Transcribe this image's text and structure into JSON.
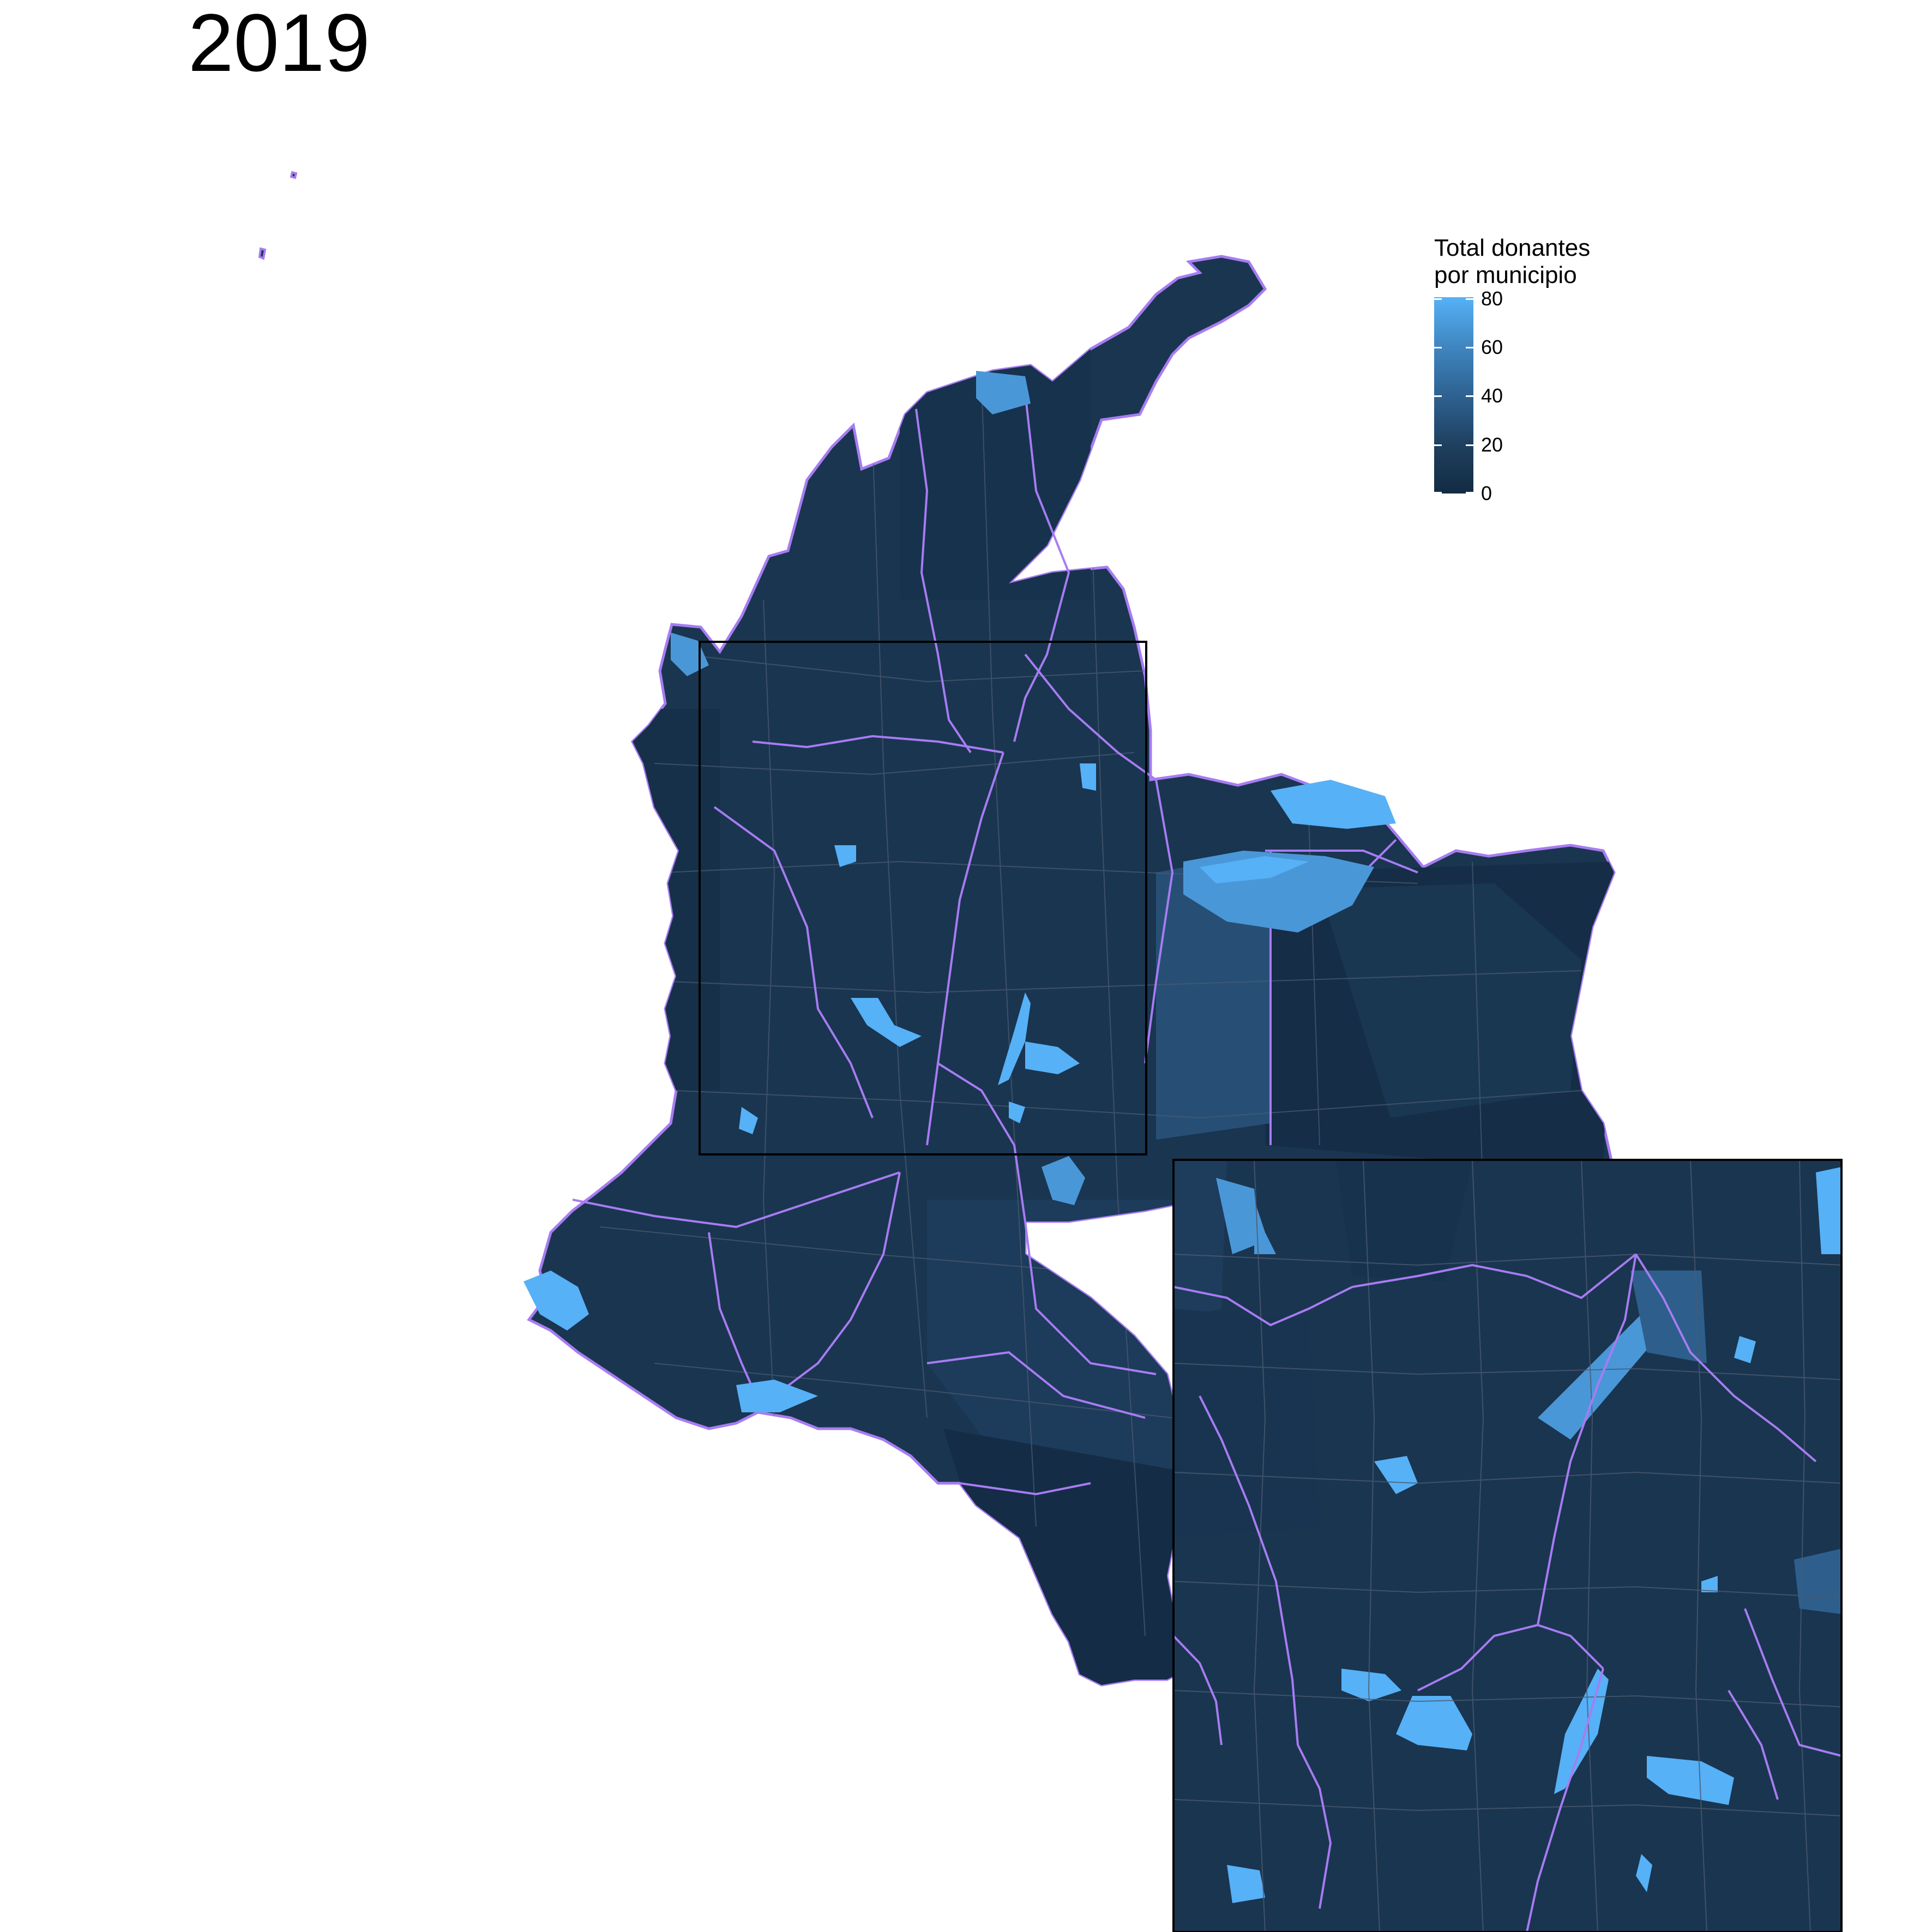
{
  "title": "2019",
  "legend": {
    "title_line1": "Total donantes",
    "title_line2": "por municipio",
    "ticks": [
      "80",
      "60",
      "40",
      "20",
      "0"
    ],
    "scale_low": "#132b43",
    "scale_high": "#56b1f7"
  },
  "colors": {
    "department_border": "#a77cf2",
    "municipality_border": "#4a5a70",
    "inset_frame": "#000000"
  }
}
